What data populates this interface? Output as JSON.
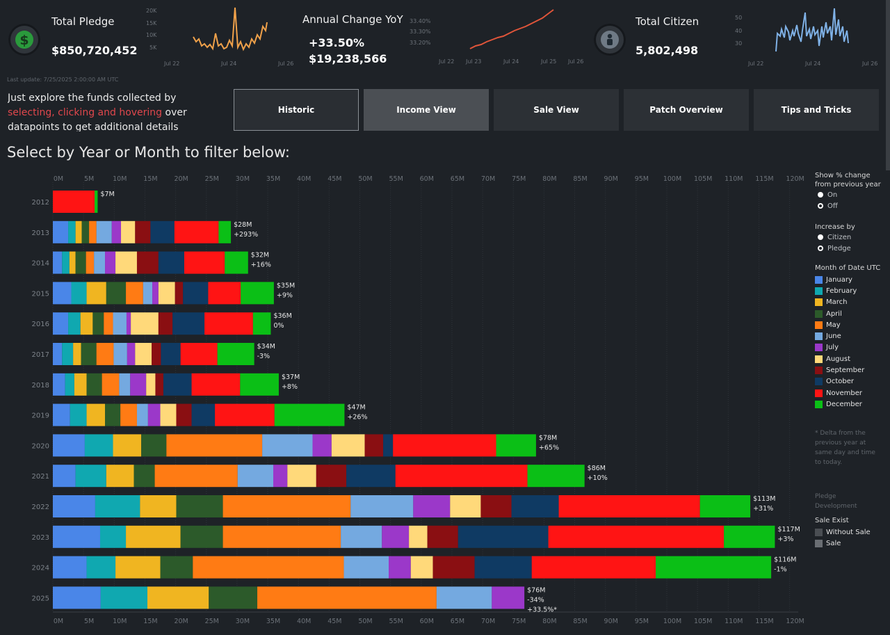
{
  "kpis": {
    "total_pledge": {
      "label": "Total Pledge",
      "value": "$850,720,452",
      "icon": "dollar-icon"
    },
    "annual_change": {
      "label": "Annual Change YoY",
      "percent": "+33.50%",
      "amount": "$19,238,566"
    },
    "total_citizen": {
      "label": "Total Citizen",
      "value": "5,802,498",
      "icon": "citizen-icon"
    }
  },
  "sparklines": {
    "pledge": {
      "y_ticks": [
        "20K",
        "15K",
        "10K",
        "5K"
      ],
      "x_ticks": [
        "Jul 22",
        "Jul 24",
        "Jul 26"
      ],
      "color": "#f0a14a"
    },
    "change": {
      "y_ticks": [
        "33.40%",
        "33.30%",
        "33.20%"
      ],
      "x_ticks": [
        "Jul 22",
        "Jul 23",
        "Jul 24",
        "Jul 25",
        "Jul 26"
      ],
      "color": "#e0553a"
    },
    "citizen": {
      "y_ticks": [
        "50",
        "40",
        "30"
      ],
      "x_ticks": [
        "Jul 22",
        "Jul 24",
        "Jul 26"
      ],
      "color": "#7fb1e6"
    }
  },
  "last_update": "Last update: 7/25/2025 2:00:00 AM UTC",
  "intro": {
    "line1": "Just explore the funds collected by",
    "highlight": "selecting, clicking and hovering",
    "after": " over",
    "line3": "datapoints to get additional details"
  },
  "tabs": [
    "Historic",
    "Income View",
    "Sale View",
    "Patch Overview",
    "Tips and Tricks"
  ],
  "filter_title": "Select by Year or Month to filter below:",
  "legend": {
    "pct_title_1": "Show % change",
    "pct_title_2": "from previous year",
    "pct_options": [
      "On",
      "Off"
    ],
    "increase_title": "Increase by",
    "increase_options": [
      "Citizen",
      "Pledge"
    ],
    "month_title": "Month of Date UTC",
    "note": [
      "* Delta from the",
      "previous year at",
      "same day and time",
      "to today."
    ],
    "pledge_dev": [
      "Pledge",
      "Development"
    ],
    "sale_title": "Sale Exist",
    "sale_options": [
      "Without Sale",
      "Sale"
    ]
  },
  "chart_data": {
    "type": "bar",
    "orientation": "horizontal-stacked",
    "x_ticks": [
      "0M",
      "5M",
      "10M",
      "15M",
      "20M",
      "25M",
      "30M",
      "35M",
      "40M",
      "45M",
      "50M",
      "55M",
      "60M",
      "65M",
      "70M",
      "75M",
      "80M",
      "85M",
      "90M",
      "95M",
      "100M",
      "105M",
      "110M",
      "115M",
      "120M"
    ],
    "xlim": [
      0,
      120
    ],
    "months": [
      "January",
      "February",
      "March",
      "April",
      "May",
      "June",
      "July",
      "August",
      "September",
      "October",
      "November",
      "December"
    ],
    "colors": [
      "#4a86e8",
      "#10a8b0",
      "#f0b521",
      "#2c5a2a",
      "#ff7b14",
      "#74a9e0",
      "#9b38c9",
      "#ffd97a",
      "#8a0f12",
      "#0f3a63",
      "#ff1414",
      "#0bbf16"
    ],
    "years": [
      {
        "year": "2012",
        "values": [
          0,
          0,
          0,
          0,
          0,
          0,
          0,
          0,
          0,
          0,
          6.8,
          0.5
        ],
        "total": "$7M",
        "change": ""
      },
      {
        "year": "2013",
        "values": [
          2.5,
          1.2,
          1,
          1.2,
          1.2,
          2.5,
          1.5,
          2.3,
          2.5,
          3.9,
          7.2,
          2
        ],
        "total": "$28M",
        "change": "+293%"
      },
      {
        "year": "2014",
        "values": [
          1.5,
          1.2,
          1,
          1.7,
          1.3,
          1.8,
          1.7,
          3.5,
          3.5,
          4.2,
          6.6,
          3.8
        ],
        "total": "$32M",
        "change": "+16%"
      },
      {
        "year": "2015",
        "values": [
          3,
          2.5,
          3.2,
          3.2,
          2.8,
          1.5,
          1,
          2.7,
          1.3,
          4.1,
          5.3,
          5.4
        ],
        "total": "$35M",
        "change": "+9%"
      },
      {
        "year": "2016",
        "values": [
          2.5,
          2,
          2,
          1.8,
          1.5,
          2.2,
          0.7,
          4.5,
          2.3,
          5.2,
          7.9,
          2.9
        ],
        "total": "$36M",
        "change": "0%"
      },
      {
        "year": "2017",
        "values": [
          1.5,
          1.8,
          1.3,
          2.5,
          2.8,
          2.2,
          1.3,
          2.7,
          1.5,
          3.2,
          6,
          6
        ],
        "total": "$34M",
        "change": "-3%"
      },
      {
        "year": "2018",
        "values": [
          2,
          1.5,
          2,
          2.5,
          2.8,
          1.8,
          2.6,
          1.5,
          1.3,
          4.6,
          7.9,
          6.3
        ],
        "total": "$37M",
        "change": "+8%"
      },
      {
        "year": "2019",
        "values": [
          2.8,
          2.7,
          3,
          2.5,
          2.7,
          1.8,
          2,
          2.6,
          2.5,
          3.8,
          9.7,
          11.4
        ],
        "total": "$47M",
        "change": "+26%"
      },
      {
        "year": "2020",
        "values": [
          5.2,
          4.6,
          4.6,
          4.1,
          15.6,
          8.2,
          3.1,
          5.4,
          3,
          1.6,
          16.8,
          6.5
        ],
        "total": "$78M",
        "change": "+65%"
      },
      {
        "year": "2021",
        "values": [
          3.7,
          5,
          4.5,
          3.4,
          13.5,
          5.8,
          2.3,
          4.7,
          4.9,
          8,
          21.5,
          9.3
        ],
        "total": "$86M",
        "change": "+10%"
      },
      {
        "year": "2022",
        "values": [
          6.9,
          7.3,
          5.9,
          7.6,
          20.8,
          10.2,
          6,
          5,
          5,
          7.7,
          23,
          8.2
        ],
        "total": "$113M",
        "change": "+31%"
      },
      {
        "year": "2023",
        "values": [
          7.7,
          4.2,
          8.9,
          6.9,
          19.2,
          6.7,
          4.4,
          3,
          5,
          14.7,
          28.6,
          8.3
        ],
        "total": "$117M",
        "change": "+3%"
      },
      {
        "year": "2024",
        "values": [
          5.5,
          4.7,
          7.3,
          5.3,
          24.6,
          7.3,
          3.6,
          3.6,
          6.8,
          9.3,
          20.2,
          18.8
        ],
        "total": "$116M",
        "change": "-1%"
      },
      {
        "year": "2025",
        "values": [
          7.8,
          7.6,
          10,
          7.9,
          29.2,
          9,
          5.3,
          0,
          0,
          0,
          0,
          0
        ],
        "total": "$76M",
        "change": "-34%",
        "extra": "+33.5%*"
      }
    ]
  }
}
